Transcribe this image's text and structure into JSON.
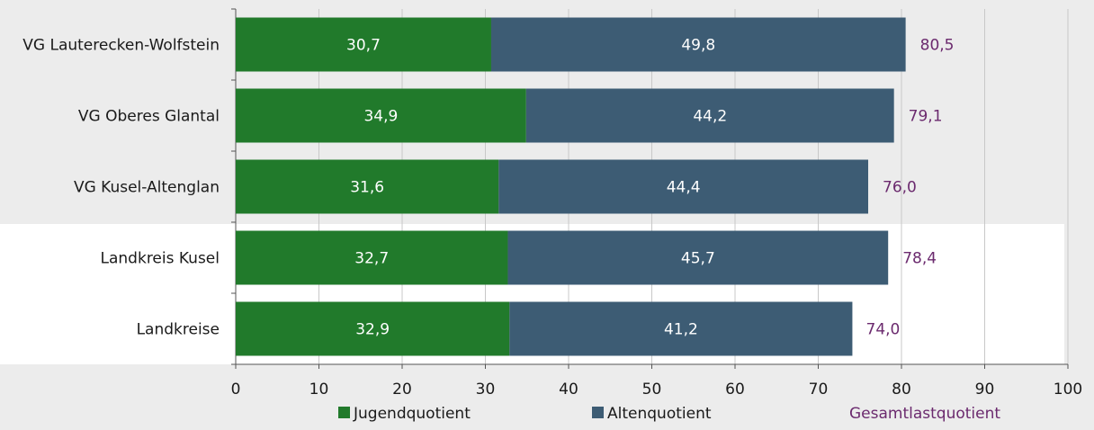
{
  "chart_data": {
    "type": "bar",
    "orientation": "horizontal",
    "stacked": true,
    "categories": [
      "VG Lauterecken-Wolfstein",
      "VG Oberes Glantal",
      "VG Kusel-Altenglan",
      "Landkreis Kusel",
      "Landkreise"
    ],
    "series": [
      {
        "name": "Jugendquotient",
        "values": [
          30.7,
          34.9,
          31.6,
          32.7,
          32.9
        ],
        "color": "#217a2b",
        "labels": [
          "30,7",
          "34,9",
          "31,6",
          "32,7",
          "32,9"
        ]
      },
      {
        "name": "Altenquotient",
        "values": [
          49.8,
          44.2,
          44.4,
          45.7,
          41.2
        ],
        "color": "#3d5c74",
        "labels": [
          "49,8",
          "44,2",
          "44,4",
          "45,7",
          "41,2"
        ]
      }
    ],
    "totals": {
      "name": "Gesamtlastquotient",
      "values": [
        80.5,
        79.1,
        76.0,
        78.4,
        74.0
      ],
      "labels": [
        "80,5",
        "79,1",
        "76,0",
        "78,4",
        "74,0"
      ],
      "color": "#6b2a6e"
    },
    "xlim": [
      0,
      100
    ],
    "xticks": [
      0,
      10,
      20,
      30,
      40,
      50,
      60,
      70,
      80,
      90,
      100
    ],
    "grid": true,
    "legend_position": "bottom"
  },
  "colors": {
    "background": "#ececec",
    "highlight_band": "#ffffff",
    "grid": "#c8c8c8",
    "axis": "#555555"
  }
}
